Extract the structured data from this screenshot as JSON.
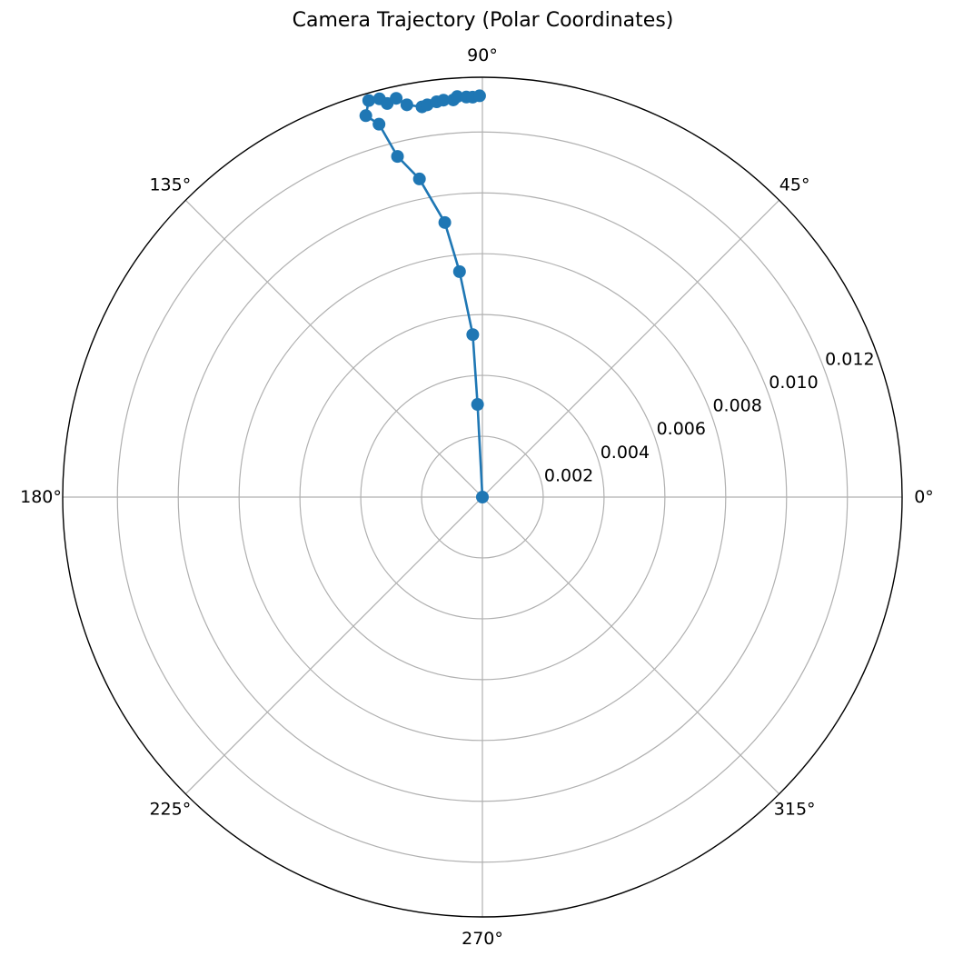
{
  "chart_data": {
    "type": "line",
    "projection": "polar",
    "title": "Camera Trajectory (Polar Coordinates)",
    "theta_unit": "degrees",
    "r_lim": [
      0,
      0.0138
    ],
    "grid": true,
    "marker": "circle",
    "color": "#1f77b4",
    "theta_ticks": [
      0,
      45,
      90,
      135,
      180,
      225,
      270,
      315
    ],
    "theta_tick_labels": [
      "0°",
      "45°",
      "90°",
      "135°",
      "180°",
      "225°",
      "270°",
      "315°"
    ],
    "r_ticks": [
      0.002,
      0.004,
      0.006,
      0.008,
      0.01,
      0.012
    ],
    "r_tick_labels": [
      "0.002",
      "0.004",
      "0.006",
      "0.008",
      "0.010",
      "0.012"
    ],
    "series": [
      {
        "theta": [
          0,
          93.0,
          93.4,
          95.8,
          97.8,
          101.2,
          104.0,
          105.5,
          107.0,
          106.0,
          104.5,
          103.6,
          102.2,
          100.9,
          98.8,
          98.0,
          96.6,
          95.6,
          94.2,
          93.6,
          92.3,
          91.4,
          90.4
        ],
        "r": [
          0,
          0.00305,
          0.00535,
          0.00745,
          0.00911,
          0.01066,
          0.01154,
          0.01272,
          0.01311,
          0.01356,
          0.01352,
          0.01331,
          0.01341,
          0.01313,
          0.01298,
          0.01302,
          0.01308,
          0.01311,
          0.01309,
          0.01319,
          0.01316,
          0.01315,
          0.01319
        ]
      }
    ]
  }
}
